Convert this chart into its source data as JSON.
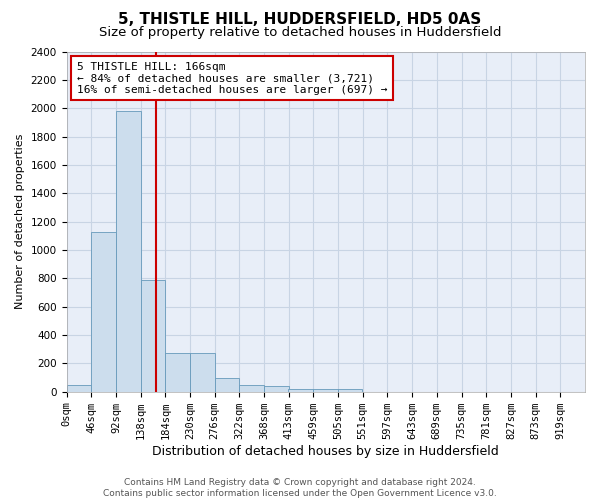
{
  "title": "5, THISTLE HILL, HUDDERSFIELD, HD5 0AS",
  "subtitle": "Size of property relative to detached houses in Huddersfield",
  "xlabel": "Distribution of detached houses by size in Huddersfield",
  "ylabel": "Number of detached properties",
  "property_size": 166,
  "annotation_line1": "5 THISTLE HILL: 166sqm",
  "annotation_line2": "← 84% of detached houses are smaller (3,721)",
  "annotation_line3": "16% of semi-detached houses are larger (697) →",
  "bar_left_edges": [
    0,
    46,
    92,
    138,
    184,
    230,
    276,
    322,
    368,
    413,
    459,
    505,
    551,
    597,
    643,
    689,
    735,
    781,
    827,
    873
  ],
  "bar_heights": [
    50,
    1130,
    1980,
    790,
    270,
    270,
    95,
    50,
    40,
    22,
    18,
    18,
    0,
    0,
    0,
    0,
    0,
    0,
    0,
    0
  ],
  "bin_width": 46,
  "bar_color": "#ccdded",
  "bar_edge_color": "#6699bb",
  "vline_color": "#cc0000",
  "annotation_box_edgecolor": "#cc0000",
  "grid_color": "#c8d4e4",
  "background_color": "#e8eef8",
  "ylim": [
    0,
    2400
  ],
  "yticks": [
    0,
    200,
    400,
    600,
    800,
    1000,
    1200,
    1400,
    1600,
    1800,
    2000,
    2200,
    2400
  ],
  "tick_labels": [
    "0sqm",
    "46sqm",
    "92sqm",
    "138sqm",
    "184sqm",
    "230sqm",
    "276sqm",
    "322sqm",
    "368sqm",
    "413sqm",
    "459sqm",
    "505sqm",
    "551sqm",
    "597sqm",
    "643sqm",
    "689sqm",
    "735sqm",
    "781sqm",
    "827sqm",
    "873sqm",
    "919sqm"
  ],
  "footer_text": "Contains HM Land Registry data © Crown copyright and database right 2024.\nContains public sector information licensed under the Open Government Licence v3.0.",
  "title_fontsize": 11,
  "subtitle_fontsize": 9.5,
  "xlabel_fontsize": 9,
  "ylabel_fontsize": 8,
  "tick_fontsize": 7.5,
  "annotation_fontsize": 8,
  "footer_fontsize": 6.5
}
